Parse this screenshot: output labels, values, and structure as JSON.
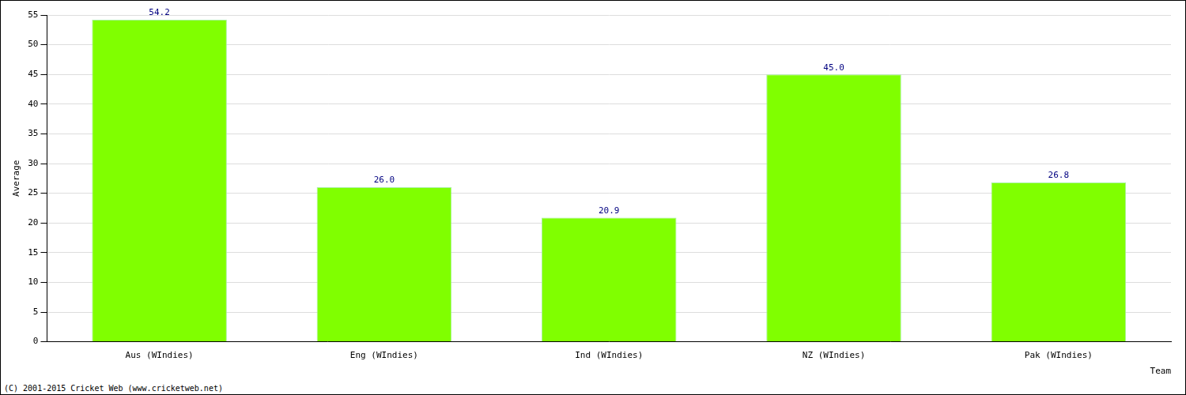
{
  "chart_data": {
    "type": "bar",
    "x_label": "Team",
    "y_label": "Average",
    "annotations": [
      "(C) 2001-2015 Cricket Web (www.cricketweb.net)"
    ],
    "categories": [
      "Aus (WIndies)",
      "Eng (WIndies)",
      "Ind (WIndies)",
      "NZ (WIndies)",
      "Pak (WIndies)"
    ],
    "values": [
      54.2,
      26.0,
      20.9,
      45.0,
      26.8
    ],
    "value_labels": [
      "54.2",
      "26.0",
      "20.9",
      "45.0",
      "26.8"
    ],
    "data_labels": true,
    "color": "#80ff00",
    "ylim": [
      0,
      55
    ],
    "yticks": [
      0,
      5,
      10,
      15,
      20,
      25,
      30,
      35,
      40,
      45,
      50,
      55
    ],
    "grid": true
  }
}
